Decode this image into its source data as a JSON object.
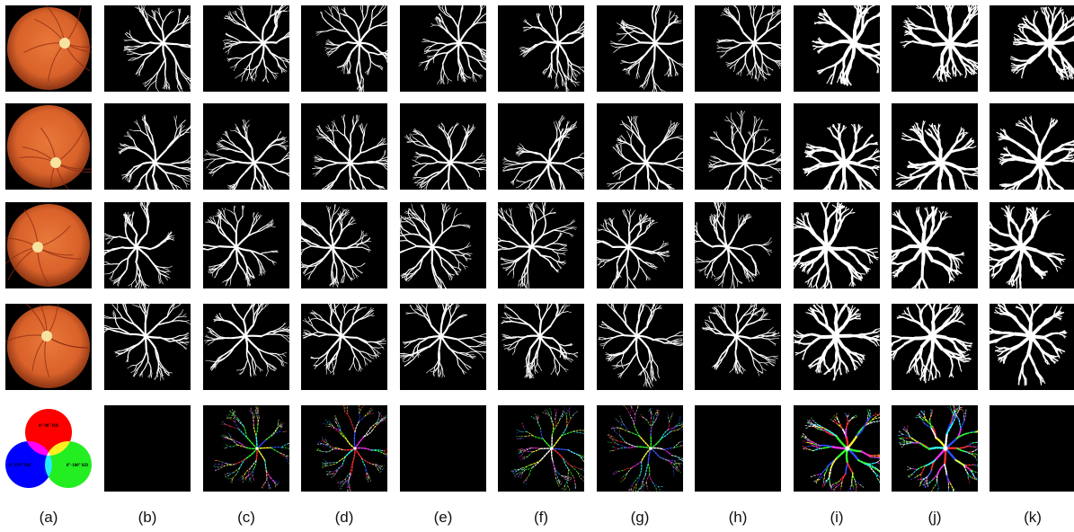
{
  "figure": {
    "column_labels": [
      "(a)",
      "(b)",
      "(c)",
      "(d)",
      "(e)",
      "(f)",
      "(g)",
      "(h)",
      "(i)",
      "(j)",
      "(k)"
    ],
    "legend": {
      "red_label": "0°-90° RD",
      "green_label": "0°-180° RD",
      "blue_label": "0°-270° RD",
      "red_color": "#ff0000",
      "green_color": "#22ee22",
      "blue_color": "#0000ff"
    },
    "colors": {
      "background": "#ffffff",
      "mask_background": "#000000",
      "vessel": "#ffffff",
      "fundus_orange": "#d9622a",
      "optic_disc": "#f6e3a0"
    }
  }
}
